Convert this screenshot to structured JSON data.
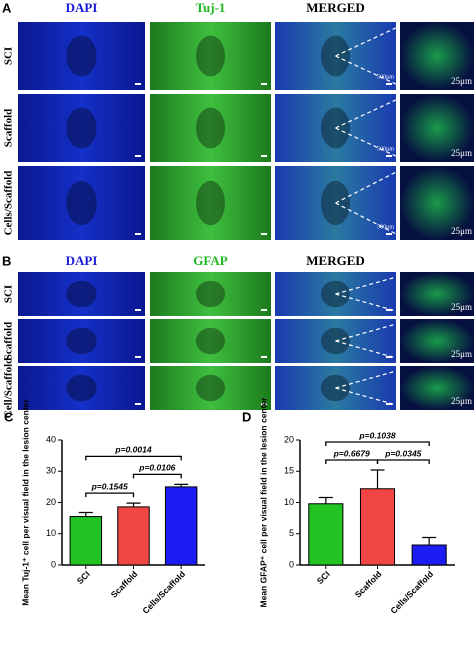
{
  "panels": [
    {
      "letter": "A",
      "columns": [
        "DAPI",
        "Tuj-1",
        "MERGED"
      ],
      "rows": [
        {
          "label": "SCI",
          "scale_merged": "500μm",
          "scale_zoom": "25μm"
        },
        {
          "label": "Scaffold",
          "scale_merged": "500μm",
          "scale_zoom": "25μm"
        },
        {
          "label": "Cells/Scaffold",
          "scale_merged": "500μm",
          "scale_zoom": "25μm"
        }
      ]
    },
    {
      "letter": "B",
      "columns": [
        "DAPI",
        "GFAP",
        "MERGED"
      ],
      "rows": [
        {
          "label": "SCI",
          "scale_zoom": "25μm"
        },
        {
          "label": "Scaffold",
          "scale_zoom": "25μm"
        },
        {
          "label": "Cell/Scaffold",
          "scale_zoom": "25μm"
        }
      ]
    }
  ],
  "chart_data": [
    {
      "type": "bar",
      "letter": "C",
      "ylabel": "Mean Tuj-1⁺ cell per visual field in the lesion center",
      "categories": [
        "SCI",
        "Scaffold",
        "Cells/Scaffold"
      ],
      "values": [
        15.5,
        18.6,
        25
      ],
      "errors": [
        1.3,
        1.2,
        0.8
      ],
      "colors": [
        "#22c322",
        "#f24646",
        "#1c1cf5"
      ],
      "ylim": [
        0,
        40
      ],
      "yticks": [
        0,
        10,
        20,
        30,
        40
      ],
      "annotations": [
        "p=0.1545",
        "p=0.0106",
        "p=0.0014"
      ]
    },
    {
      "type": "bar",
      "letter": "D",
      "ylabel": "Mean GFAP⁺ cell per visual field in the lesion center",
      "categories": [
        "SCI",
        "Scaffold",
        "Cells/Scaffold"
      ],
      "values": [
        9.8,
        12.2,
        3.2
      ],
      "errors": [
        1,
        3,
        1.2
      ],
      "colors": [
        "#22c322",
        "#f24646",
        "#1c1cf5"
      ],
      "ylim": [
        0,
        20
      ],
      "yticks": [
        0,
        5,
        10,
        15,
        20
      ],
      "annotations": [
        "p=0.6679",
        "p=0.0345",
        "p=0.1038"
      ]
    }
  ]
}
